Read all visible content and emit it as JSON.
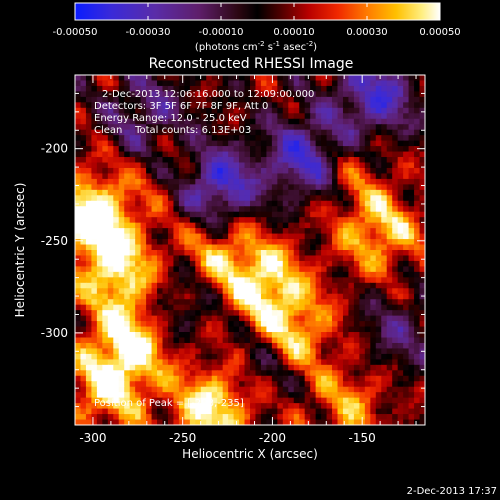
{
  "chart_data": {
    "type": "heatmap",
    "title": "Reconstructed RHESSI Image",
    "xlabel": "Heliocentric X (arcsec)",
    "ylabel": "Heliocentric Y (arcsec)",
    "xlim": [
      -310,
      -115
    ],
    "ylim": [
      -350,
      -160
    ],
    "x_ticks": [
      -300,
      -250,
      -200,
      -150
    ],
    "y_ticks": [
      -200,
      -250,
      -300
    ],
    "x_tick_labels": [
      "-300",
      "-250",
      "-200",
      "-150"
    ],
    "y_tick_labels": [
      "-200",
      "-250",
      "-300"
    ],
    "colorbar": {
      "vmin": -0.0005,
      "vmax": 0.0005,
      "ticks": [
        -0.0005,
        -0.0003,
        -0.0001,
        0.0001,
        0.0003,
        0.0005
      ],
      "tick_labels": [
        "-0.00050",
        "-0.00030",
        "-0.00010",
        "0.00010",
        "0.00030",
        "0.00050"
      ],
      "label": "(photons cm",
      "label_exp1": "-2",
      "label_mid": " s",
      "label_exp2": "-1",
      "label_mid2": " asec",
      "label_exp3": "-2",
      "label_end": ")"
    },
    "annotations": {
      "time_range": "2-Dec-2013 12:06:16.000 to 12:09:00.000",
      "detectors": "Detectors: 3F 5F 6F 7F 8F 9F, Att 0",
      "energy_range": "Energy Range: 12.0 - 25.0 keV",
      "clean_counts": "Clean    Total counts: 6.13E+03",
      "peak_position": "Position of Peak = [-298,-235]"
    },
    "peak": [
      -298,
      -235
    ],
    "timestamp": "2-Dec-2013 17:37",
    "bright_regions": [
      {
        "x": -300,
        "y": -236,
        "value": 0.0005
      },
      {
        "x": -285,
        "y": -268,
        "value": 0.0004
      },
      {
        "x": -278,
        "y": -305,
        "value": 0.0004
      },
      {
        "x": -292,
        "y": -330,
        "value": 0.00035
      },
      {
        "x": -232,
        "y": -340,
        "value": 0.00045
      },
      {
        "x": -205,
        "y": -272,
        "value": 0.0004
      },
      {
        "x": -188,
        "y": -300,
        "value": 0.00035
      },
      {
        "x": -140,
        "y": -245,
        "value": 0.00035
      },
      {
        "x": -160,
        "y": -210,
        "value": 0.0002
      },
      {
        "x": -250,
        "y": -215,
        "value": 0.00015
      },
      {
        "x": -232,
        "y": -255,
        "value": 0.00025
      },
      {
        "x": -158,
        "y": -338,
        "value": 0.00025
      }
    ],
    "dark_regions": [
      {
        "x": -232,
        "y": -220,
        "value": -0.0005
      },
      {
        "x": -180,
        "y": -205,
        "value": -0.00045
      },
      {
        "x": -143,
        "y": -172,
        "value": -0.0004
      },
      {
        "x": -270,
        "y": -180,
        "value": -0.00025
      },
      {
        "x": -205,
        "y": -318,
        "value": -0.0002
      },
      {
        "x": -130,
        "y": -300,
        "value": -0.0002
      },
      {
        "x": -255,
        "y": -285,
        "value": -0.0002
      }
    ]
  }
}
